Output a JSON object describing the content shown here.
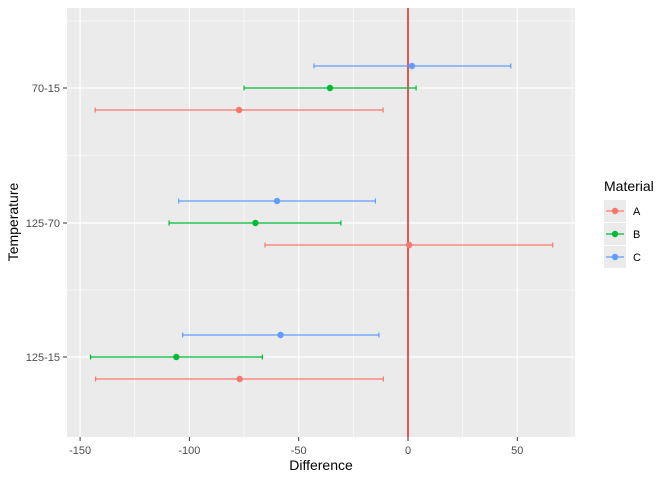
{
  "chart_data": {
    "type": "errorbar",
    "xlabel": "Difference",
    "ylabel": "Temperature",
    "xlim": [
      -157,
      75
    ],
    "x_ticks": [
      -150,
      -100,
      -50,
      0,
      50
    ],
    "x_tick_labels": [
      "-150",
      "-100",
      "-50",
      "0",
      "50"
    ],
    "categories": [
      "125-15",
      "125-70",
      "70-15"
    ],
    "reference_line": {
      "x": 0,
      "color": "#e00000"
    },
    "grid": true,
    "legend": {
      "title": "Material",
      "position": "right"
    },
    "series": [
      {
        "name": "A",
        "color": "#F8766D",
        "values": [
          {
            "diff": -77.0,
            "lwr": -142.9,
            "upr": -11.3
          },
          {
            "diff": 0.5,
            "lwr": -65.4,
            "upr": 66.2
          },
          {
            "diff": -77.3,
            "lwr": -143.1,
            "upr": -11.4
          }
        ]
      },
      {
        "name": "B",
        "color": "#00BA38",
        "values": [
          {
            "diff": -106.0,
            "lwr": -145.2,
            "upr": -66.6
          },
          {
            "diff": -69.8,
            "lwr": -109.3,
            "upr": -30.7
          },
          {
            "diff": -35.7,
            "lwr": -75.0,
            "upr": 3.7
          }
        ]
      },
      {
        "name": "C",
        "color": "#619CFF",
        "values": [
          {
            "diff": -58.3,
            "lwr": -103.1,
            "upr": -13.3
          },
          {
            "diff": -59.9,
            "lwr": -104.9,
            "upr": -14.9
          },
          {
            "diff": 1.8,
            "lwr": -43.0,
            "upr": 47.0
          }
        ]
      }
    ]
  }
}
